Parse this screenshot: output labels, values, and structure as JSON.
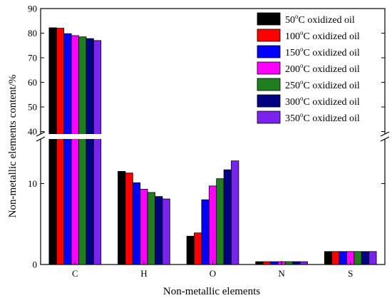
{
  "chart_data": {
    "type": "bar",
    "xlabel": "Non-metallic elements",
    "ylabel": "Non-metallic elements content/%",
    "categories": [
      "C",
      "H",
      "O",
      "N",
      "S"
    ],
    "axis_break": {
      "lower_range": [
        0,
        15.5
      ],
      "upper_range": [
        39,
        90
      ]
    },
    "y_ticks_lower": [
      0,
      10
    ],
    "y_ticks_upper": [
      40,
      50,
      60,
      70,
      80,
      90
    ],
    "legend_position": "top-right",
    "series": [
      {
        "name_prefix": "50",
        "name_sup": "o",
        "name_suffix": "C oxidized oil",
        "color": "#000000",
        "values": [
          82.2,
          11.5,
          3.5,
          0.35,
          1.6
        ]
      },
      {
        "name_prefix": "100",
        "name_sup": "o",
        "name_suffix": "C oxidized oil",
        "color": "#ff0000",
        "values": [
          82.0,
          11.3,
          3.9,
          0.35,
          1.6
        ]
      },
      {
        "name_prefix": "150",
        "name_sup": "o",
        "name_suffix": "C oxidized oil",
        "color": "#0000ff",
        "values": [
          79.8,
          10.1,
          8.0,
          0.35,
          1.6
        ]
      },
      {
        "name_prefix": "200",
        "name_sup": "o",
        "name_suffix": "C oxidized oil",
        "color": "#ff00ff",
        "values": [
          79.0,
          9.3,
          9.7,
          0.35,
          1.6
        ]
      },
      {
        "name_prefix": "250",
        "name_sup": "o",
        "name_suffix": "C oxidized oil",
        "color": "#1f7f1f",
        "values": [
          78.5,
          8.9,
          10.6,
          0.35,
          1.6
        ]
      },
      {
        "name_prefix": "300",
        "name_sup": "o",
        "name_suffix": "C oxidized oil",
        "color": "#000080",
        "values": [
          77.8,
          8.4,
          11.7,
          0.35,
          1.6
        ]
      },
      {
        "name_prefix": "350",
        "name_sup": "o",
        "name_suffix": "C oxidized oil",
        "color": "#7a22ee",
        "values": [
          77.0,
          8.1,
          12.8,
          0.35,
          1.6
        ]
      }
    ]
  }
}
